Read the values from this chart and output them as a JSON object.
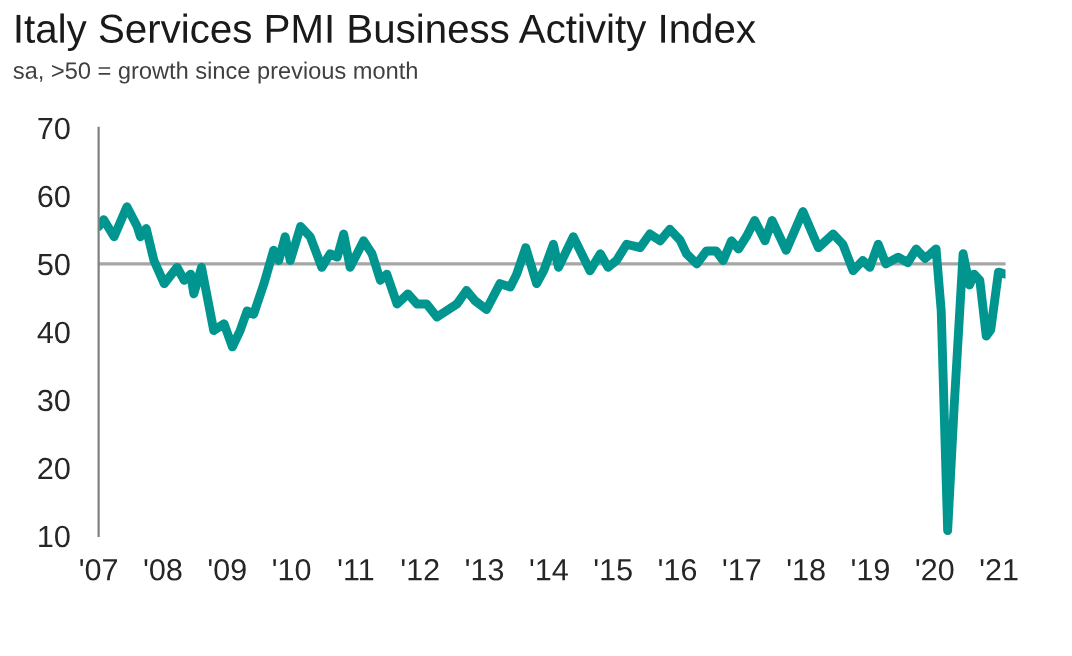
{
  "chart_data": {
    "type": "line",
    "title": "Italy Services PMI Business Activity Index",
    "subtitle": "sa, >50 = growth since previous month",
    "x": [
      2007.0,
      2007.08,
      2007.24,
      2007.44,
      2007.6,
      2007.65,
      2007.74,
      2007.86,
      2008.02,
      2008.22,
      2008.33,
      2008.43,
      2008.48,
      2008.6,
      2008.79,
      2008.95,
      2009.08,
      2009.2,
      2009.31,
      2009.41,
      2009.57,
      2009.72,
      2009.8,
      2009.9,
      2009.98,
      2010.14,
      2010.29,
      2010.47,
      2010.6,
      2010.71,
      2010.81,
      2010.91,
      2011.12,
      2011.25,
      2011.38,
      2011.48,
      2011.64,
      2011.81,
      2011.95,
      2012.1,
      2012.26,
      2012.41,
      2012.57,
      2012.72,
      2012.85,
      2013.03,
      2013.24,
      2013.4,
      2013.5,
      2013.64,
      2013.81,
      2013.92,
      2014.07,
      2014.15,
      2014.38,
      2014.64,
      2014.8,
      2014.92,
      2015.05,
      2015.21,
      2015.42,
      2015.57,
      2015.73,
      2015.88,
      2016.04,
      2016.14,
      2016.3,
      2016.45,
      2016.6,
      2016.71,
      2016.84,
      2016.95,
      2017.07,
      2017.2,
      2017.36,
      2017.47,
      2017.69,
      2017.95,
      2018.19,
      2018.42,
      2018.57,
      2018.73,
      2018.88,
      2018.99,
      2019.12,
      2019.24,
      2019.43,
      2019.58,
      2019.71,
      2019.85,
      2020.02,
      2020.1,
      2020.2,
      2020.3,
      2020.44,
      2020.54,
      2020.61,
      2020.7,
      2020.8,
      2020.87,
      2020.99,
      2021.1
    ],
    "series": [
      {
        "color": "#00968f",
        "values": [
          55.5,
          56.5,
          54.0,
          58.4,
          55.5,
          54.0,
          55.2,
          50.5,
          47.1,
          49.5,
          47.6,
          48.5,
          45.6,
          49.5,
          40.2,
          41.2,
          37.8,
          40.2,
          43.1,
          42.6,
          47.1,
          52.0,
          50.5,
          54.0,
          50.5,
          55.5,
          54.0,
          49.5,
          51.5,
          51.0,
          54.4,
          49.5,
          53.4,
          51.5,
          47.6,
          48.5,
          44.1,
          45.6,
          44.1,
          44.1,
          42.2,
          43.1,
          44.1,
          46.1,
          44.6,
          43.3,
          47.1,
          46.6,
          48.5,
          52.4,
          47.1,
          49.0,
          52.9,
          49.5,
          54.0,
          49.0,
          51.5,
          49.5,
          50.5,
          52.9,
          52.4,
          54.4,
          53.4,
          55.1,
          53.5,
          51.5,
          50.0,
          51.9,
          51.9,
          50.5,
          53.4,
          52.2,
          54.0,
          56.4,
          53.4,
          56.4,
          52.0,
          57.7,
          52.4,
          54.4,
          52.9,
          49.0,
          50.5,
          49.5,
          52.9,
          50.0,
          51.0,
          50.2,
          52.2,
          50.8,
          52.2,
          43.1,
          10.8,
          28.8,
          51.5,
          46.9,
          48.5,
          47.6,
          39.4,
          40.3,
          48.8,
          48.5
        ]
      }
    ],
    "xlim": [
      2007.0,
      2021.1
    ],
    "xticks": [
      {
        "value": 2007,
        "label": "'07"
      },
      {
        "value": 2008,
        "label": "'08"
      },
      {
        "value": 2009,
        "label": "'09"
      },
      {
        "value": 2010,
        "label": "'10"
      },
      {
        "value": 2011,
        "label": "'11"
      },
      {
        "value": 2012,
        "label": "'12"
      },
      {
        "value": 2013,
        "label": "'13"
      },
      {
        "value": 2014,
        "label": "'14"
      },
      {
        "value": 2015,
        "label": "'15"
      },
      {
        "value": 2016,
        "label": "'16"
      },
      {
        "value": 2017,
        "label": "'17"
      },
      {
        "value": 2018,
        "label": "'18"
      },
      {
        "value": 2019,
        "label": "'19"
      },
      {
        "value": 2020,
        "label": "'20"
      },
      {
        "value": 2021,
        "label": "'21"
      }
    ],
    "ylim": [
      10,
      70
    ],
    "yticks": [
      10,
      20,
      30,
      40,
      50,
      60,
      70
    ],
    "ref_lines": [
      {
        "axis": "y",
        "value": 50,
        "color": "#a6a6a6"
      }
    ],
    "grid": false,
    "legend": false,
    "marker": "none",
    "line_style": "solid"
  }
}
